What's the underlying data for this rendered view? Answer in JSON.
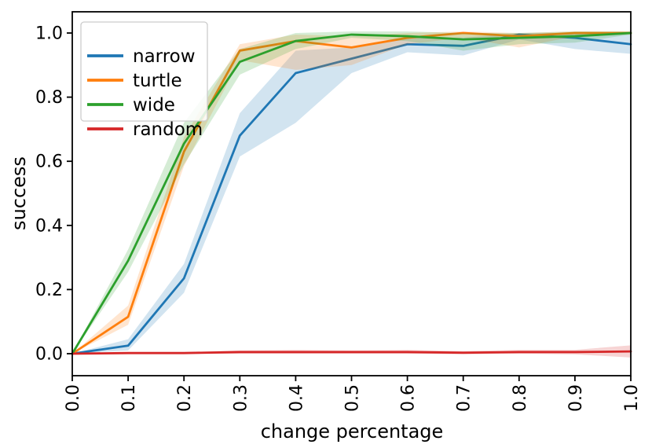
{
  "figure": {
    "background": "#ffffff"
  },
  "chart_data": {
    "type": "line",
    "title": "",
    "xlabel": "change percentage",
    "ylabel": "success",
    "x": [
      0.0,
      0.1,
      0.2,
      0.3,
      0.4,
      0.5,
      0.6,
      0.7,
      0.8,
      0.9,
      1.0
    ],
    "xticks": [
      "0.0",
      "0.1",
      "0.2",
      "0.3",
      "0.4",
      "0.5",
      "0.6",
      "0.7",
      "0.8",
      "0.9",
      "1.0"
    ],
    "yticks": [
      "0.0",
      "0.2",
      "0.4",
      "0.6",
      "0.8",
      "1.0"
    ],
    "xlim": [
      0.0,
      1.0
    ],
    "ylim": [
      -0.07,
      1.07
    ],
    "grid": false,
    "legend_position": "upper left",
    "band_opacity": 0.2,
    "series": [
      {
        "name": "narrow",
        "color": "#1f77b4",
        "values": [
          0.0,
          0.025,
          0.235,
          0.68,
          0.875,
          0.92,
          0.965,
          0.96,
          0.995,
          0.985,
          0.965
        ],
        "band_lower": [
          0.0,
          0.01,
          0.19,
          0.615,
          0.72,
          0.875,
          0.94,
          0.93,
          0.98,
          0.95,
          0.935
        ],
        "band_upper": [
          0.0,
          0.045,
          0.28,
          0.75,
          0.945,
          0.955,
          0.985,
          0.985,
          1.0,
          1.0,
          0.995
        ]
      },
      {
        "name": "turtle",
        "color": "#ff7f0e",
        "values": [
          0.0,
          0.115,
          0.63,
          0.945,
          0.975,
          0.955,
          0.985,
          1.0,
          0.99,
          1.0,
          1.0
        ],
        "band_lower": [
          0.0,
          0.09,
          0.585,
          0.915,
          0.885,
          0.9,
          0.965,
          0.985,
          0.955,
          0.99,
          0.995
        ],
        "band_upper": [
          0.0,
          0.15,
          0.675,
          0.965,
          0.995,
          0.99,
          1.0,
          1.005,
          1.0,
          1.005,
          1.005
        ]
      },
      {
        "name": "wide",
        "color": "#2ca02c",
        "values": [
          0.0,
          0.29,
          0.655,
          0.91,
          0.975,
          0.995,
          0.99,
          0.98,
          0.985,
          0.99,
          1.0
        ],
        "band_lower": [
          0.0,
          0.255,
          0.59,
          0.87,
          0.95,
          0.985,
          0.975,
          0.945,
          0.965,
          0.97,
          0.995
        ],
        "band_upper": [
          0.0,
          0.325,
          0.72,
          0.95,
          1.0,
          1.005,
          1.005,
          1.0,
          1.0,
          1.005,
          1.005
        ]
      },
      {
        "name": "random",
        "color": "#d62728",
        "values": [
          0.0,
          0.002,
          0.002,
          0.005,
          0.005,
          0.005,
          0.005,
          0.003,
          0.005,
          0.005,
          0.007
        ],
        "band_lower": [
          0.0,
          0.0,
          0.0,
          0.0,
          0.0,
          0.0,
          0.0,
          -0.002,
          0.0,
          -0.002,
          -0.012
        ],
        "band_upper": [
          0.0,
          0.004,
          0.005,
          0.01,
          0.012,
          0.01,
          0.012,
          0.008,
          0.012,
          0.012,
          0.026
        ]
      }
    ]
  }
}
